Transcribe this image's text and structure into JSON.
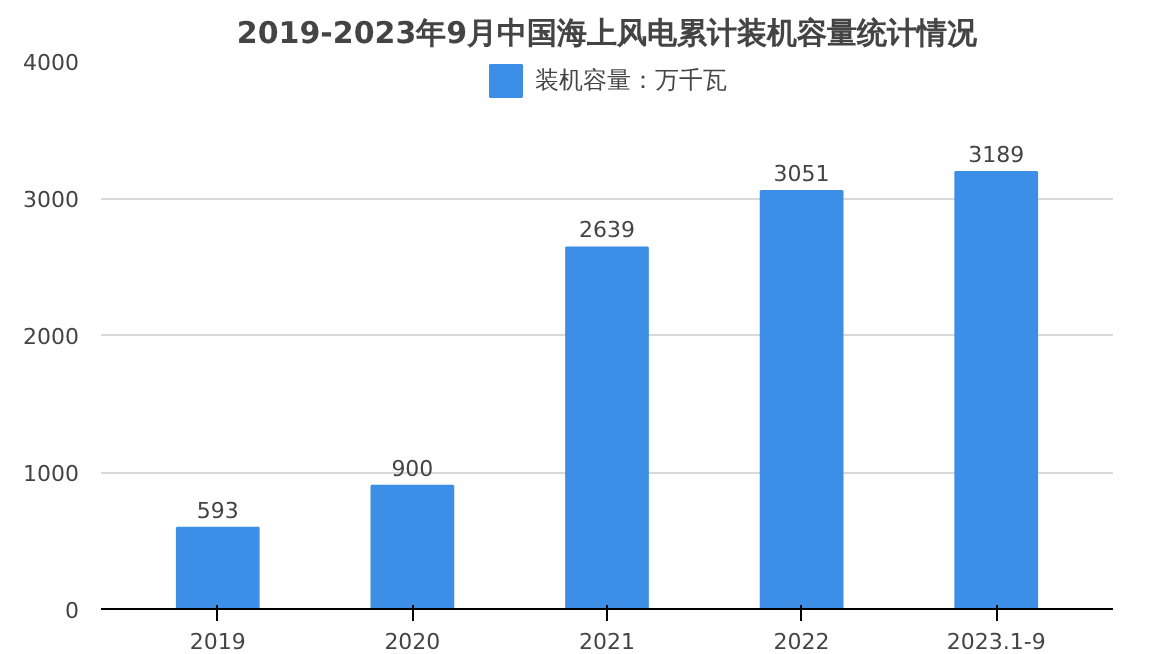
{
  "chart_data": {
    "type": "bar",
    "title": "2019-2023年9月中国海上风电累计装机容量统计情况",
    "categories": [
      "2019",
      "2020",
      "2021",
      "2022",
      "2023.1-9"
    ],
    "series": [
      {
        "name": "装机容量：万千瓦",
        "color": "#3d8ee6",
        "values": [
          593,
          900,
          2639,
          3051,
          3189
        ]
      }
    ],
    "ylim": [
      0,
      4000
    ],
    "yticks": [
      0,
      1000,
      2000,
      3000,
      4000
    ],
    "grid": "y",
    "legend": "top",
    "data_labels": true
  }
}
